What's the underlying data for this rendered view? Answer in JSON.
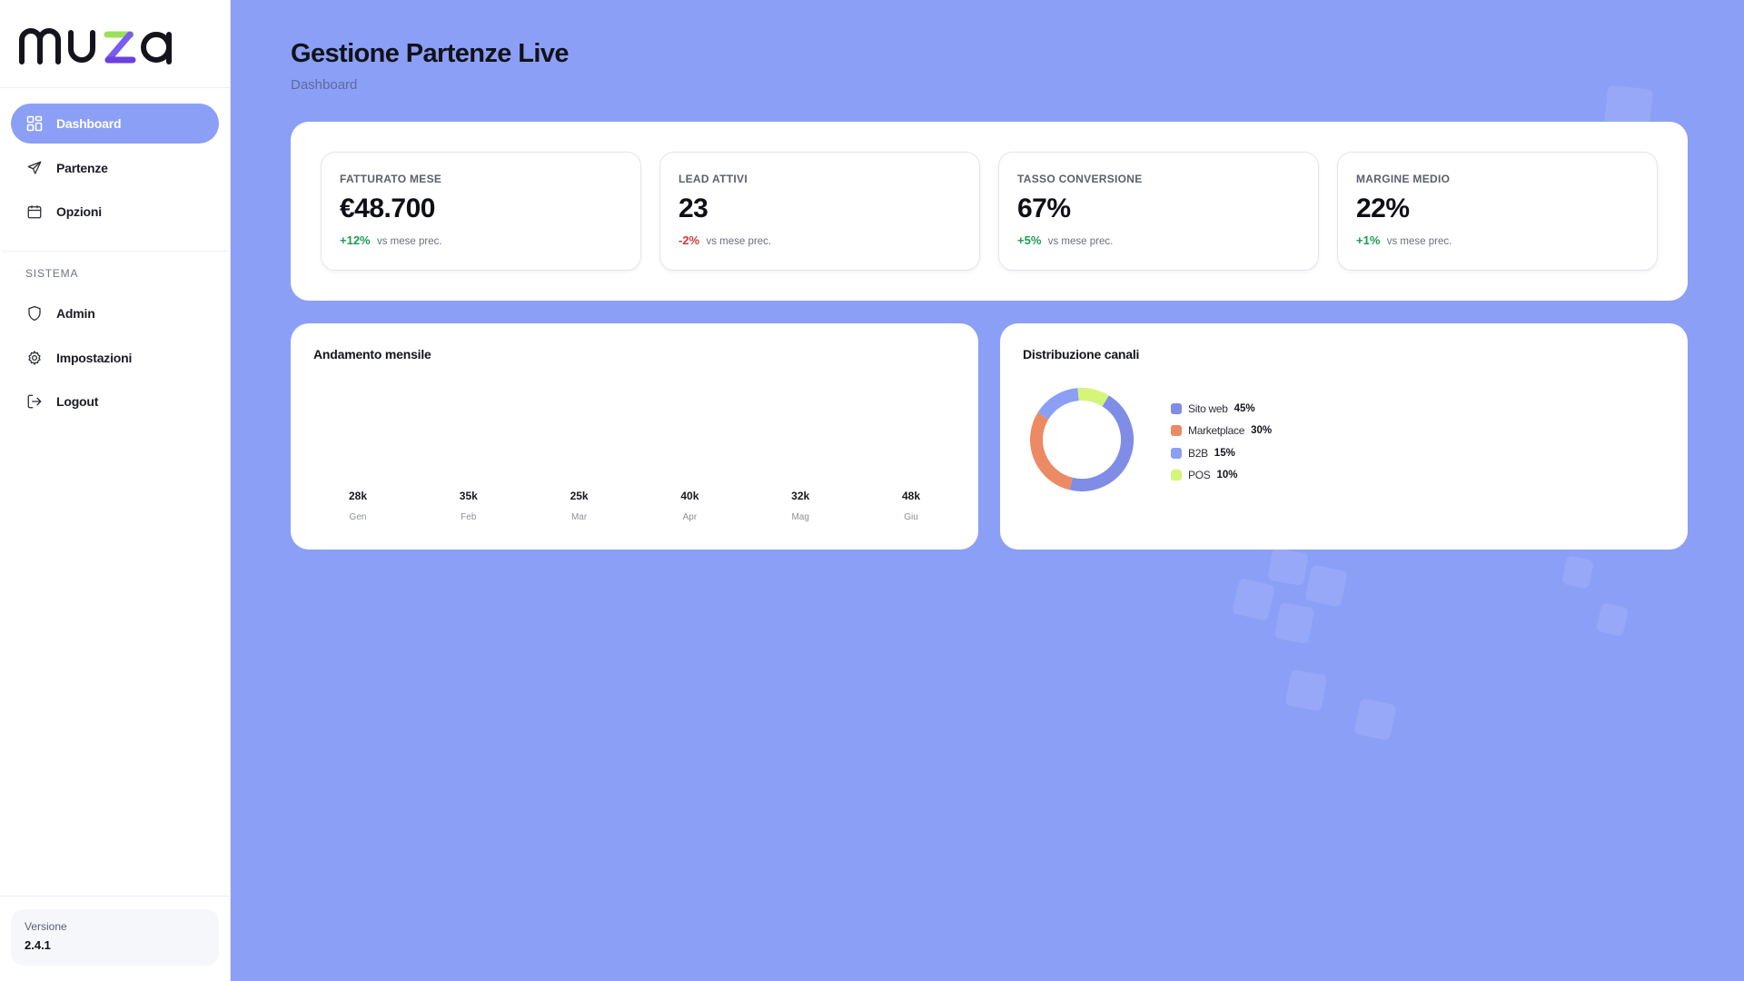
{
  "app": {
    "logo_text": "muza"
  },
  "sidebar": {
    "nav": [
      {
        "label": "Dashboard",
        "icon": "dashboard-grid-icon",
        "active": true
      },
      {
        "label": "Partenze",
        "icon": "plane-icon",
        "active": false
      },
      {
        "label": "Opzioni",
        "icon": "calendar-icon",
        "active": false
      }
    ],
    "section_title": "SISTEMA",
    "system_nav": [
      {
        "label": "Admin",
        "icon": "shield-icon"
      },
      {
        "label": "Impostazioni",
        "icon": "gear-icon"
      },
      {
        "label": "Logout",
        "icon": "logout-icon"
      }
    ],
    "version": {
      "label": "Versione",
      "value": "2.4.1"
    }
  },
  "header": {
    "title": "Gestione Partenze Live",
    "breadcrumb": "Dashboard"
  },
  "kpis": [
    {
      "label": "FATTURATO MESE",
      "value": "€48.700",
      "delta": "+12%",
      "delta_note": "vs mese prec.",
      "trend": "positive"
    },
    {
      "label": "LEAD ATTIVI",
      "value": "23",
      "delta": "-2%",
      "delta_note": "vs mese prec.",
      "trend": "negative"
    },
    {
      "label": "TASSO CONVERSIONE",
      "value": "67%",
      "delta": "+5%",
      "delta_note": "vs mese prec.",
      "trend": "positive"
    },
    {
      "label": "MARGINE MEDIO",
      "value": "22%",
      "delta": "+1%",
      "delta_note": "vs mese prec.",
      "trend": "positive"
    }
  ],
  "panels": {
    "trend_title": "Andamento mensile",
    "channels_title": "Distribuzione canali"
  },
  "chart_data": [
    {
      "type": "bar",
      "title": "Andamento mensile",
      "categories": [
        "Gen",
        "Feb",
        "Mar",
        "Apr",
        "Mag",
        "Giu"
      ],
      "value_labels": [
        "28k",
        "35k",
        "25k",
        "40k",
        "32k",
        "48k"
      ],
      "values": [
        28000,
        35000,
        25000,
        40000,
        32000,
        48000
      ],
      "xlabel": "",
      "ylabel": ""
    },
    {
      "type": "pie",
      "title": "Distribuzione canali",
      "labels": [
        "Sito web",
        "Marketplace",
        "B2B",
        "POS"
      ],
      "value_labels": [
        "45%",
        "30%",
        "15%",
        "10%"
      ],
      "values": [
        45,
        30,
        15,
        10
      ],
      "colors": [
        "#7f8de6",
        "#ec8a63",
        "#8b9ff6",
        "#d4f57a"
      ],
      "legend": "right"
    }
  ],
  "colors": {
    "accent": "#8b9ff6",
    "positive": "#1f9a56",
    "negative": "#d8363b"
  }
}
